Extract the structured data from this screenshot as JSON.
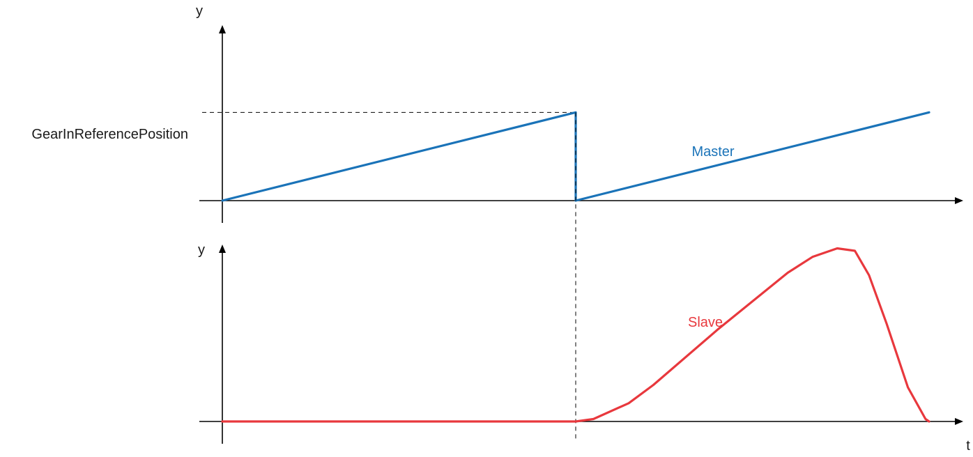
{
  "chart_data": [
    {
      "type": "line",
      "title": "",
      "xlabel": "",
      "ylabel": "y",
      "xlim": [
        0,
        10
      ],
      "ylim": [
        0,
        1.5
      ],
      "grid": false,
      "reference": {
        "label": "GearInReferencePosition",
        "y": 1.0,
        "x": 5.0
      },
      "series": [
        {
          "name": "Master",
          "color": "#1a73b8",
          "x": [
            0,
            5,
            5,
            10
          ],
          "y": [
            0,
            1.0,
            0,
            1.0
          ]
        }
      ]
    },
    {
      "type": "line",
      "title": "",
      "xlabel": "t",
      "ylabel": "y",
      "xlim": [
        0,
        10
      ],
      "ylim": [
        0,
        1.6
      ],
      "grid": false,
      "series": [
        {
          "name": "Slave",
          "color": "#e8383d",
          "x": [
            0,
            5.0,
            5.25,
            5.75,
            6.1,
            7.0,
            8.0,
            8.35,
            8.7,
            8.95,
            9.15,
            9.4,
            9.7,
            9.95,
            10.0
          ],
          "y": [
            0,
            0,
            0.02,
            0.15,
            0.3,
            0.75,
            1.22,
            1.35,
            1.42,
            1.4,
            1.2,
            0.8,
            0.28,
            0.02,
            0
          ]
        }
      ]
    }
  ]
}
